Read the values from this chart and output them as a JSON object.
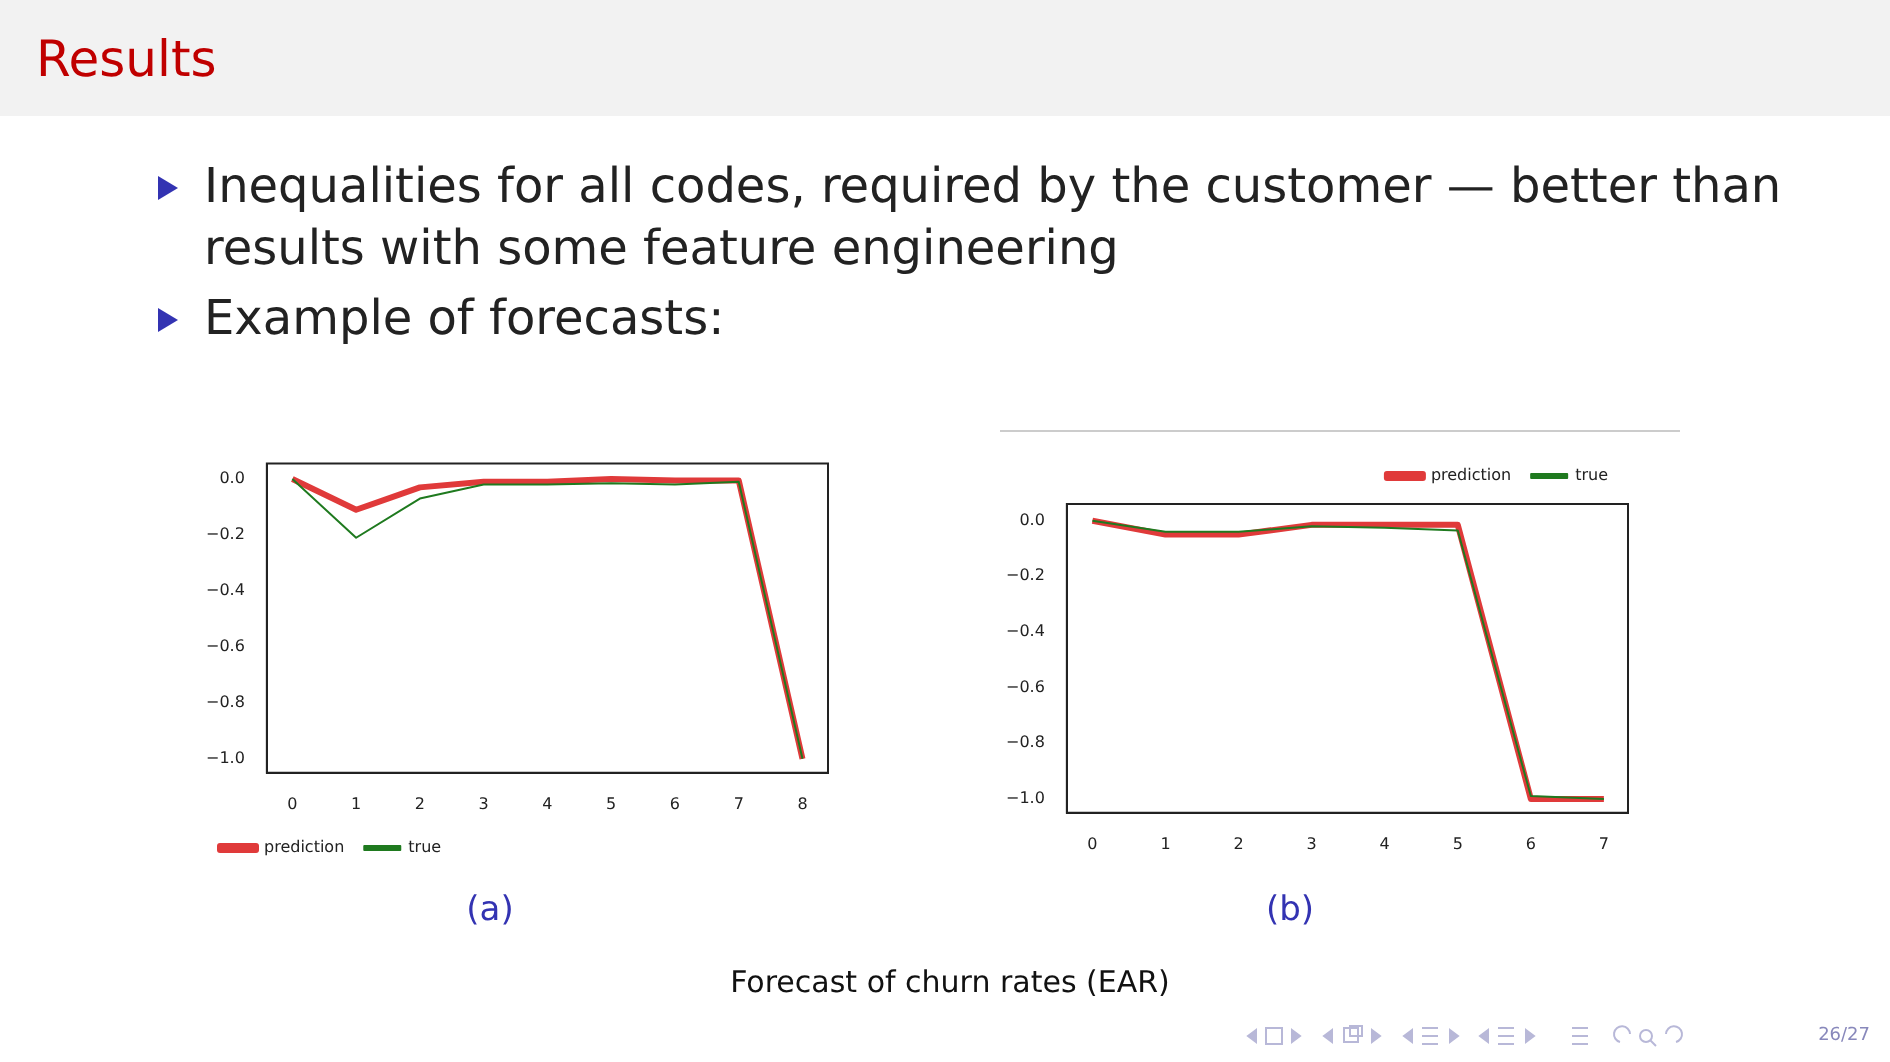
{
  "chart_data": [
    {
      "type": "other",
      "title": "Results",
      "annotations": [
        "Inequalities for all codes, required by the customer — better than results with some feature engineering",
        "Example of forecasts:"
      ]
    },
    {
      "type": "line",
      "x": [
        0,
        1,
        2,
        3,
        4,
        5,
        6,
        7,
        8
      ],
      "xlim": [
        -0.4,
        8.4
      ],
      "xticks": [
        0,
        1,
        2,
        3,
        4,
        5,
        6,
        7,
        8
      ],
      "ylim": [
        -1.05,
        0.055
      ],
      "yticks": [
        {
          "value": -1.0,
          "label": "−1.0"
        },
        {
          "value": -0.8,
          "label": "−0.8"
        },
        {
          "value": -0.6,
          "label": "−0.6"
        },
        {
          "value": -0.4,
          "label": "−0.4"
        },
        {
          "value": -0.2,
          "label": "−0.2"
        },
        {
          "value": 0,
          "label": "0.0"
        }
      ],
      "grid": false,
      "legend": "bottom left",
      "marker": "none",
      "line_style": "solid",
      "annotations": [
        "(a)"
      ],
      "series": [
        {
          "name": "prediction",
          "color": "#e03a3a",
          "values": [
            0,
            -0.11,
            -0.03,
            -0.01,
            -0.01,
            0,
            -0.005,
            -0.005,
            -1.0
          ]
        },
        {
          "name": "true",
          "color": "#1f7a1f",
          "values": [
            0,
            -0.21,
            -0.07,
            -0.02,
            -0.02,
            -0.015,
            -0.02,
            -0.01,
            -1.0
          ]
        }
      ]
    },
    {
      "type": "line",
      "x": [
        0,
        1,
        2,
        3,
        4,
        5,
        6,
        7
      ],
      "xlim": [
        -0.35,
        7.33
      ],
      "xticks": [
        0,
        1,
        2,
        3,
        4,
        5,
        6,
        7
      ],
      "ylim": [
        -1.05,
        0.06
      ],
      "yticks": [
        {
          "value": -1.0,
          "label": "−1.0"
        },
        {
          "value": -0.8,
          "label": "−0.8"
        },
        {
          "value": -0.6,
          "label": "−0.6"
        },
        {
          "value": -0.4,
          "label": "−0.4"
        },
        {
          "value": -0.2,
          "label": "−0.2"
        },
        {
          "value": 0,
          "label": "0.0"
        }
      ],
      "grid": false,
      "legend": "top right",
      "marker": "none",
      "line_style": "solid",
      "annotations": [
        "(b)"
      ],
      "series": [
        {
          "name": "prediction",
          "color": "#e03a3a",
          "values": [
            0,
            -0.05,
            -0.05,
            -0.015,
            -0.015,
            -0.015,
            -1.0,
            -1.0
          ]
        },
        {
          "name": "true",
          "color": "#1f7a1f",
          "values": [
            0,
            -0.04,
            -0.04,
            -0.02,
            -0.025,
            -0.035,
            -0.99,
            -1.0
          ]
        }
      ]
    },
    {
      "type": "other",
      "annotations": [
        "Forecast of churn rates (EAR)",
        "26/27"
      ]
    }
  ]
}
